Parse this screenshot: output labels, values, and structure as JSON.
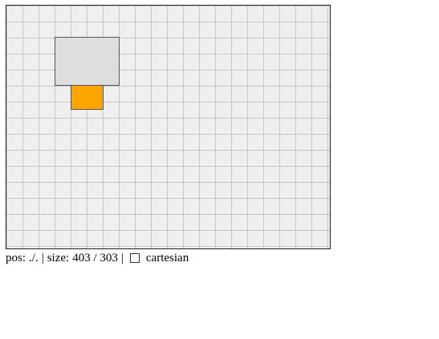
{
  "canvas": {
    "background_color": "#efefef",
    "grid_line_color": "#c6c6c6",
    "border_color": "#222222",
    "boxes": [
      {
        "name": "gray-box",
        "color": "#dedede"
      },
      {
        "name": "orange-box",
        "color": "#ffa500"
      }
    ]
  },
  "status": {
    "pos_label": "pos:",
    "pos_value": "./.",
    "separator": "|",
    "size_label": "size:",
    "size_value": "403 / 303",
    "cartesian_label": "cartesian",
    "cartesian_checked": false
  }
}
